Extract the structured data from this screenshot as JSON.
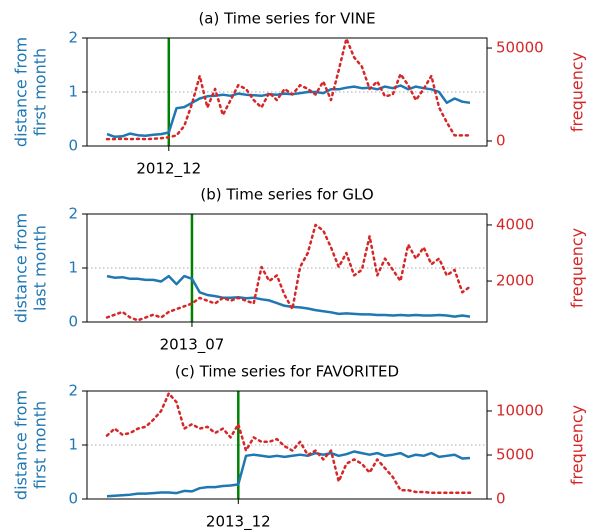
{
  "chart_data": [
    {
      "type": "line",
      "title": "(a) Time series for VINE",
      "ylabel": [
        "distance from",
        "first month"
      ],
      "y2label": "frequency",
      "categories": [
        null,
        null,
        null,
        null,
        null,
        null,
        null,
        null,
        "2012_12",
        null,
        null,
        null,
        null,
        null,
        null,
        null,
        null,
        null,
        null,
        null,
        null,
        null,
        null,
        null,
        null,
        null,
        null,
        null,
        null,
        null,
        null,
        null,
        null,
        null,
        null,
        null,
        null,
        null,
        null,
        null,
        null,
        null,
        null,
        null,
        null,
        null,
        null,
        null
      ],
      "ylim": [
        0,
        2
      ],
      "yticks": [
        0,
        1,
        2
      ],
      "y2lim": [
        -2700,
        55400
      ],
      "y2ticks": [
        0,
        50000
      ],
      "reference_line": 1,
      "series": [
        {
          "name": "distance",
          "color": "#1f77b4",
          "values": [
            0.22,
            0.17,
            0.18,
            0.23,
            0.2,
            0.19,
            0.21,
            0.22,
            0.25,
            0.7,
            0.72,
            0.8,
            0.88,
            0.92,
            0.93,
            0.95,
            0.93,
            0.97,
            0.95,
            0.94,
            0.93,
            0.96,
            0.95,
            0.97,
            0.96,
            0.98,
            1.0,
            1.0,
            0.98,
            1.05,
            1.05,
            1.08,
            1.1,
            1.07,
            1.08,
            1.05,
            1.1,
            1.07,
            1.12,
            1.05,
            1.1,
            1.07,
            1.05,
            1.0,
            0.8,
            0.88,
            0.82,
            0.8
          ]
        },
        {
          "name": "frequency",
          "color": "#d62728",
          "axis": "y2",
          "values": [
            1000,
            1000,
            1200,
            1000,
            1100,
            1000,
            1200,
            1500,
            2000,
            3000,
            8000,
            20000,
            35000,
            18000,
            28000,
            14000,
            22000,
            30000,
            28000,
            22000,
            18000,
            26000,
            22000,
            28000,
            25000,
            30000,
            28000,
            25000,
            32000,
            22000,
            38000,
            55000,
            45000,
            40000,
            28000,
            32000,
            24000,
            25000,
            36000,
            30000,
            22000,
            28000,
            35000,
            18000,
            10000,
            3000,
            3000,
            3000
          ]
        }
      ]
    },
    {
      "type": "line",
      "title": "(b) Time series for GLO",
      "ylabel": [
        "distance from",
        "last month"
      ],
      "y2label": "frequency",
      "categories": [
        null,
        null,
        null,
        null,
        null,
        null,
        null,
        null,
        null,
        null,
        null,
        "2013_07",
        null,
        null,
        null,
        null,
        null,
        null,
        null,
        null,
        null,
        null,
        null,
        null,
        null,
        null,
        null,
        null,
        null,
        null,
        null,
        null,
        null,
        null,
        null,
        null,
        null,
        null,
        null,
        null,
        null,
        null,
        null,
        null,
        null,
        null,
        null,
        null
      ],
      "ylim": [
        0,
        2
      ],
      "yticks": [
        0,
        1,
        2
      ],
      "y2lim": [
        540,
        4390
      ],
      "y2ticks": [
        2000,
        4000
      ],
      "reference_line": 1,
      "series": [
        {
          "name": "distance",
          "color": "#1f77b4",
          "values": [
            0.85,
            0.82,
            0.83,
            0.8,
            0.8,
            0.78,
            0.78,
            0.75,
            0.85,
            0.7,
            0.85,
            0.8,
            0.55,
            0.5,
            0.48,
            0.45,
            0.45,
            0.46,
            0.44,
            0.45,
            0.42,
            0.4,
            0.35,
            0.3,
            0.28,
            0.27,
            0.25,
            0.22,
            0.2,
            0.18,
            0.15,
            0.16,
            0.15,
            0.14,
            0.14,
            0.13,
            0.13,
            0.12,
            0.13,
            0.12,
            0.13,
            0.12,
            0.12,
            0.13,
            0.12,
            0.1,
            0.12,
            0.1
          ]
        },
        {
          "name": "frequency",
          "color": "#d62728",
          "axis": "y2",
          "values": [
            700,
            800,
            900,
            700,
            600,
            700,
            800,
            700,
            900,
            1000,
            1100,
            1200,
            1400,
            1300,
            1200,
            1400,
            1300,
            1400,
            1300,
            1200,
            2500,
            2000,
            2200,
            1500,
            1000,
            2500,
            3000,
            4000,
            3800,
            3200,
            2500,
            3000,
            2200,
            2400,
            3600,
            2200,
            2800,
            2400,
            2000,
            3300,
            2800,
            3200,
            2600,
            2800,
            2200,
            2400,
            1600,
            1800
          ]
        }
      ]
    },
    {
      "type": "line",
      "title": "(c) Time series for FAVORITED",
      "ylabel": [
        "distance from",
        "first month"
      ],
      "y2label": "frequency",
      "categories": [
        null,
        null,
        null,
        null,
        null,
        null,
        null,
        null,
        null,
        null,
        null,
        null,
        null,
        null,
        null,
        null,
        null,
        "2013_12",
        null,
        null,
        null,
        null,
        null,
        null,
        null,
        null,
        null,
        null,
        null,
        null,
        null,
        null,
        null,
        null,
        null,
        null,
        null,
        null,
        null,
        null,
        null,
        null,
        null,
        null,
        null,
        null,
        null,
        null
      ],
      "ylim": [
        0,
        2
      ],
      "yticks": [
        0,
        1,
        2
      ],
      "y2lim": [
        0,
        12270
      ],
      "y2ticks": [
        0,
        5000,
        10000
      ],
      "reference_line": 1,
      "series": [
        {
          "name": "distance",
          "color": "#1f77b4",
          "values": [
            0.05,
            0.06,
            0.07,
            0.08,
            0.1,
            0.1,
            0.11,
            0.12,
            0.12,
            0.11,
            0.15,
            0.14,
            0.2,
            0.22,
            0.22,
            0.24,
            0.25,
            0.27,
            0.8,
            0.82,
            0.8,
            0.78,
            0.8,
            0.78,
            0.8,
            0.82,
            0.8,
            0.85,
            0.82,
            0.85,
            0.8,
            0.83,
            0.88,
            0.85,
            0.82,
            0.85,
            0.8,
            0.82,
            0.85,
            0.78,
            0.82,
            0.8,
            0.85,
            0.78,
            0.8,
            0.82,
            0.75,
            0.76
          ]
        },
        {
          "name": "frequency",
          "color": "#d62728",
          "axis": "y2",
          "values": [
            7200,
            8000,
            7300,
            7500,
            8000,
            8200,
            9000,
            10000,
            12000,
            11000,
            8000,
            8500,
            8000,
            8200,
            7500,
            8000,
            7000,
            8500,
            5500,
            7000,
            6500,
            6500,
            6800,
            6000,
            5500,
            6500,
            5000,
            5500,
            4500,
            5500,
            2000,
            4000,
            4500,
            4000,
            3000,
            4500,
            3500,
            2500,
            1000,
            1000,
            800,
            800,
            700,
            700,
            700,
            700,
            700,
            700
          ]
        }
      ]
    }
  ]
}
